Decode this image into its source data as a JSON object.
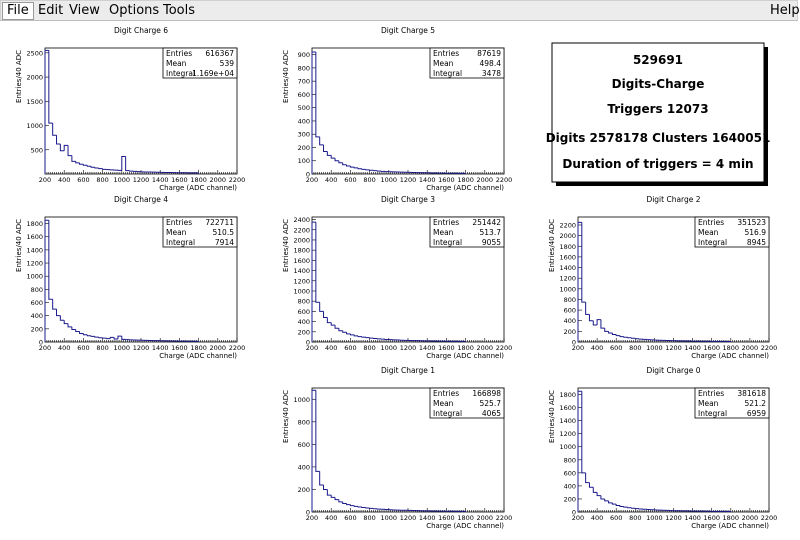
{
  "menu": {
    "file": "File",
    "edit": "Edit",
    "view": "View",
    "options": "Options",
    "tools": "Tools",
    "help": "Help"
  },
  "summary": {
    "run": "529691",
    "title": "Digits-Charge",
    "triggers": "Triggers 12073",
    "digits": "Digits 2578178 Clusters 1640051",
    "duration": "Duration of triggers = 4 min"
  },
  "colors": {
    "histogram_line": "#1a1a8c",
    "axis": "#000000",
    "background": "#ffffff"
  },
  "chart_data": [
    {
      "type": "bar",
      "title": "Digit Charge 6",
      "xlabel": "Charge (ADC channel)",
      "ylabel": "Entries/40 ADC",
      "xlim": [
        200,
        2200
      ],
      "ylim": [
        0,
        2600
      ],
      "xticks": [
        "200",
        "400",
        "600",
        "800",
        "1000",
        "1200",
        "1400",
        "1600",
        "1800",
        "2000",
        "2200"
      ],
      "yticks": [
        "500",
        "1000",
        "1500",
        "2000",
        "2500"
      ],
      "bin_start": 200,
      "bin_width": 40,
      "values": [
        2550,
        1050,
        800,
        620,
        480,
        590,
        380,
        260,
        230,
        200,
        180,
        160,
        140,
        125,
        110,
        95,
        90,
        85,
        80,
        75,
        360,
        70,
        60,
        55,
        50,
        45,
        42,
        40,
        38,
        36,
        34,
        32,
        30,
        28,
        27,
        26,
        25,
        24,
        23,
        22
      ],
      "stats": {
        "Entries": "616367",
        "Mean": "539",
        "Integral": "1.169e+04"
      }
    },
    {
      "type": "bar",
      "title": "Digit Charge 5",
      "xlabel": "Charge (ADC channel)",
      "ylabel": "Entries/40 ADC",
      "xlim": [
        200,
        2200
      ],
      "ylim": [
        0,
        950
      ],
      "xticks": [
        "200",
        "400",
        "600",
        "800",
        "1000",
        "1200",
        "1400",
        "1600",
        "1800",
        "2000",
        "2200"
      ],
      "yticks": [
        "0",
        "100",
        "200",
        "300",
        "400",
        "500",
        "600",
        "700",
        "800",
        "900"
      ],
      "bin_start": 200,
      "bin_width": 40,
      "values": [
        920,
        280,
        220,
        170,
        140,
        120,
        100,
        85,
        70,
        60,
        52,
        46,
        40,
        35,
        31,
        28,
        25,
        22,
        20,
        18,
        17,
        16,
        15,
        14,
        13,
        12,
        11,
        10,
        10,
        9,
        9,
        8,
        8,
        7,
        7,
        6,
        6,
        6,
        5,
        5
      ],
      "stats": {
        "Entries": "87619",
        "Mean": "498.4",
        "Integral": "3478"
      }
    },
    {
      "type": "bar",
      "title": "Digit Charge 4",
      "xlabel": "Charge (ADC channel)",
      "ylabel": "Entries/40 ADC",
      "xlim": [
        200,
        2200
      ],
      "ylim": [
        0,
        1900
      ],
      "xticks": [
        "200",
        "400",
        "600",
        "800",
        "1000",
        "1200",
        "1400",
        "1600",
        "1800",
        "2000",
        "2200"
      ],
      "yticks": [
        "0",
        "200",
        "400",
        "600",
        "800",
        "1000",
        "1200",
        "1400",
        "1600",
        "1800"
      ],
      "bin_start": 200,
      "bin_width": 40,
      "values": [
        1850,
        650,
        500,
        400,
        330,
        280,
        230,
        190,
        160,
        130,
        110,
        95,
        85,
        75,
        65,
        58,
        52,
        70,
        45,
        90,
        40,
        36,
        33,
        30,
        28,
        26,
        24,
        22,
        21,
        20,
        19,
        18,
        17,
        16,
        15,
        14,
        13,
        12,
        12,
        11
      ],
      "stats": {
        "Entries": "722711",
        "Mean": "510.5",
        "Integral": "7914"
      }
    },
    {
      "type": "bar",
      "title": "Digit Charge 3",
      "xlabel": "Charge (ADC channel)",
      "ylabel": "Entries/40 ADC",
      "xlim": [
        200,
        2200
      ],
      "ylim": [
        0,
        2450
      ],
      "xticks": [
        "200",
        "400",
        "600",
        "800",
        "1000",
        "1200",
        "1400",
        "1600",
        "1800",
        "2000",
        "2200"
      ],
      "yticks": [
        "0",
        "200",
        "400",
        "600",
        "800",
        "1000",
        "1200",
        "1400",
        "1600",
        "1800",
        "2000",
        "2200",
        "2400"
      ],
      "bin_start": 200,
      "bin_width": 40,
      "values": [
        2350,
        780,
        600,
        480,
        380,
        330,
        270,
        220,
        190,
        160,
        140,
        120,
        105,
        95,
        85,
        75,
        68,
        62,
        56,
        50,
        46,
        42,
        38,
        35,
        32,
        30,
        28,
        26,
        24,
        22,
        21,
        20,
        19,
        18,
        17,
        16,
        15,
        14,
        13,
        12
      ],
      "stats": {
        "Entries": "251442",
        "Mean": "513.7",
        "Integral": "9055"
      }
    },
    {
      "type": "bar",
      "title": "Digit Charge 2",
      "xlabel": "Charge (ADC channel)",
      "ylabel": "Entries/40 ADC",
      "xlim": [
        200,
        2200
      ],
      "ylim": [
        0,
        2350
      ],
      "xticks": [
        "200",
        "400",
        "600",
        "800",
        "1000",
        "1200",
        "1400",
        "1600",
        "1800",
        "2000",
        "2200"
      ],
      "yticks": [
        "0",
        "200",
        "400",
        "600",
        "800",
        "1000",
        "1200",
        "1400",
        "1600",
        "1800",
        "2000",
        "2200"
      ],
      "bin_start": 200,
      "bin_width": 40,
      "values": [
        2250,
        750,
        520,
        400,
        320,
        420,
        260,
        200,
        170,
        140,
        120,
        100,
        90,
        80,
        70,
        62,
        55,
        50,
        45,
        40,
        36,
        33,
        30,
        28,
        26,
        24,
        22,
        20,
        19,
        18,
        17,
        16,
        15,
        14,
        13,
        12,
        12,
        11,
        11,
        10
      ],
      "stats": {
        "Entries": "351523",
        "Mean": "516.9",
        "Integral": "8945"
      }
    },
    {
      "type": "bar",
      "title": "Digit Charge 1",
      "xlabel": "Charge (ADC channel)",
      "ylabel": "Entries/40 ADC",
      "xlim": [
        200,
        2200
      ],
      "ylim": [
        0,
        1100
      ],
      "xticks": [
        "200",
        "400",
        "600",
        "800",
        "1000",
        "1200",
        "1400",
        "1600",
        "1800",
        "2000",
        "2200"
      ],
      "yticks": [
        "0",
        "200",
        "400",
        "600",
        "800",
        "1000"
      ],
      "bin_start": 200,
      "bin_width": 40,
      "values": [
        1080,
        360,
        240,
        200,
        150,
        130,
        110,
        90,
        75,
        65,
        56,
        50,
        44,
        40,
        36,
        32,
        29,
        26,
        24,
        22,
        20,
        18,
        17,
        16,
        15,
        14,
        13,
        12,
        11,
        10,
        10,
        9,
        9,
        8,
        8,
        7,
        7,
        6,
        6,
        6
      ],
      "stats": {
        "Entries": "166898",
        "Mean": "525.7",
        "Integral": "4065"
      }
    },
    {
      "type": "bar",
      "title": "Digit Charge 0",
      "xlabel": "Charge (ADC channel)",
      "ylabel": "Entries/40 ADC",
      "xlim": [
        200,
        2200
      ],
      "ylim": [
        0,
        1900
      ],
      "xticks": [
        "200",
        "400",
        "600",
        "800",
        "1000",
        "1200",
        "1400",
        "1600",
        "1800",
        "2000",
        "2200"
      ],
      "yticks": [
        "0",
        "200",
        "400",
        "600",
        "800",
        "1000",
        "1200",
        "1400",
        "1600",
        "1800"
      ],
      "bin_start": 200,
      "bin_width": 40,
      "values": [
        1850,
        600,
        450,
        380,
        300,
        250,
        200,
        170,
        140,
        120,
        100,
        85,
        75,
        65,
        58,
        52,
        46,
        42,
        38,
        34,
        31,
        28,
        26,
        24,
        22,
        20,
        19,
        18,
        17,
        16,
        15,
        14,
        13,
        12,
        11,
        10,
        10,
        9,
        9,
        8
      ],
      "stats": {
        "Entries": "381618",
        "Mean": "521.2",
        "Integral": "6959"
      }
    }
  ]
}
